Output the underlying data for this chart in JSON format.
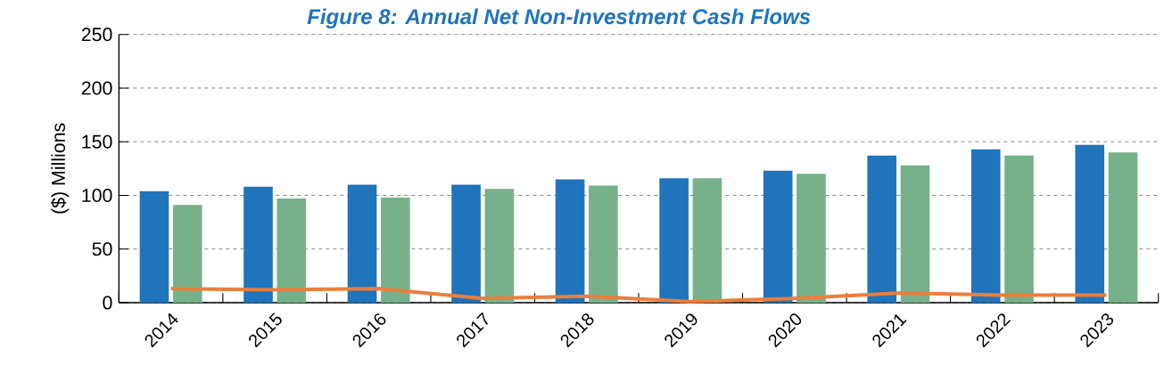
{
  "chart_data": {
    "type": "bar",
    "title": "Figure 8: Annual Net Non-Investment Cash Flows",
    "ylabel": "($) Millions",
    "categories": [
      "2014",
      "2015",
      "2016",
      "2017",
      "2018",
      "2019",
      "2020",
      "2021",
      "2022",
      "2023"
    ],
    "series": [
      {
        "color": "#1f74bc",
        "values": [
          104,
          108,
          110,
          110,
          115,
          116,
          123,
          137,
          143,
          147
        ]
      },
      {
        "color": "#77b18b",
        "values": [
          91,
          97,
          98,
          106,
          109,
          116,
          120,
          128,
          137,
          140
        ]
      },
      {
        "type": "line",
        "color": "#ea7e3c",
        "values": [
          13,
          12,
          13,
          4,
          6,
          1,
          4,
          9,
          7,
          7
        ]
      }
    ],
    "ylim": [
      0,
      250
    ],
    "yticks": [
      0,
      50,
      100,
      150,
      200,
      250
    ],
    "grid": "y"
  }
}
